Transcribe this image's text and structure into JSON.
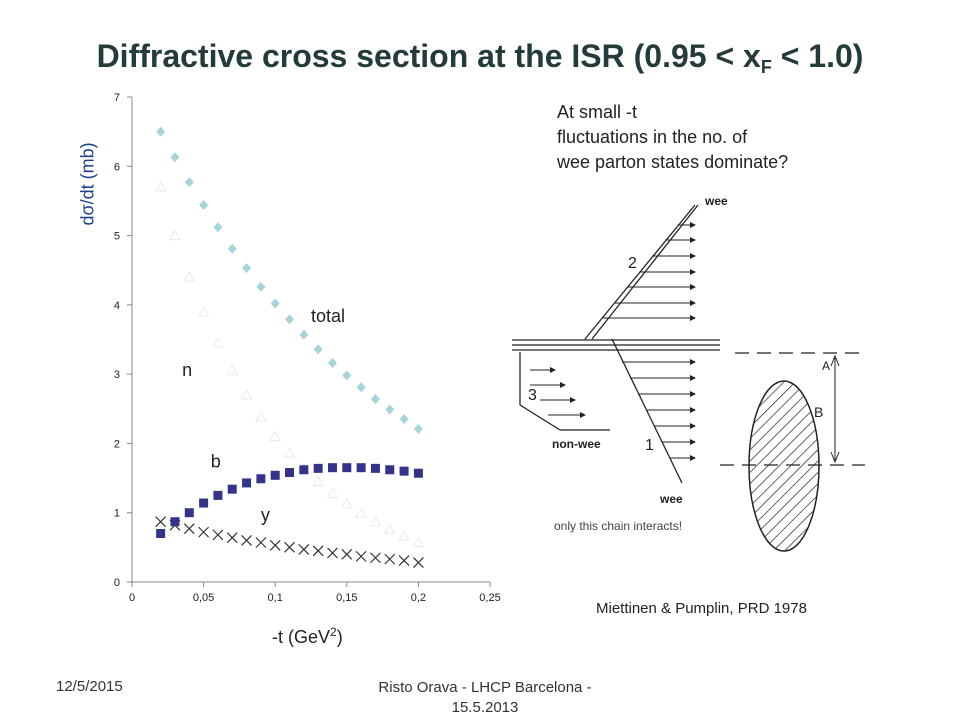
{
  "title": "Diffractive cross section at the ISR (0.95 < x",
  "title_sub": "F",
  "title_end": " < 1.0)",
  "ylabel": "dσ/dt (mb)",
  "xlabel_main": "-t (GeV",
  "xlabel_sup": "2",
  "xlabel_end": ")",
  "note_lines": [
    "At small  -t",
    "fluctuations in the no. of",
    "wee parton states dominate?"
  ],
  "citation": "Miettinen & Pumplin, PRD 1978",
  "diagram": {
    "only_label": "only this chain interacts!",
    "labels": [
      "wee",
      "2",
      "3",
      "non-wee",
      "1",
      "wee",
      "A",
      "B"
    ]
  },
  "footer": {
    "date": "12/5/2015",
    "author_line1": "Risto Orava - LHCP Barcelona -",
    "author_line2": "15.5.2013"
  },
  "chart_data": {
    "type": "scatter",
    "x_ticks": [
      "0",
      "0,05",
      "0,1",
      "0,15",
      "0,2",
      "0,25"
    ],
    "y_ticks": [
      "0",
      "1",
      "2",
      "3",
      "4",
      "5",
      "6",
      "7"
    ],
    "xlim": [
      0,
      0.25
    ],
    "ylim": [
      0,
      7
    ],
    "grid": false,
    "curve_labels": [
      "total",
      "n",
      "b",
      "y"
    ],
    "series": [
      {
        "name": "total",
        "marker": "diamond",
        "color": "#a6d4da",
        "x": [
          0.02,
          0.03,
          0.04,
          0.05,
          0.06,
          0.07,
          0.08,
          0.09,
          0.1,
          0.11,
          0.12,
          0.13,
          0.14,
          0.15,
          0.16,
          0.17,
          0.18,
          0.19,
          0.2
        ],
        "y": [
          6.5,
          6.13,
          5.77,
          5.44,
          5.12,
          4.81,
          4.53,
          4.26,
          4.02,
          3.79,
          3.57,
          3.36,
          3.16,
          2.98,
          2.81,
          2.64,
          2.49,
          2.35,
          2.21
        ]
      },
      {
        "name": "n",
        "marker": "triangle",
        "color": "#e6ecec",
        "x": [
          0.02,
          0.03,
          0.04,
          0.05,
          0.06,
          0.07,
          0.08,
          0.09,
          0.1,
          0.11,
          0.12,
          0.13,
          0.14,
          0.15,
          0.16,
          0.17,
          0.18,
          0.19,
          0.2
        ],
        "y": [
          5.7,
          5.0,
          4.4,
          3.9,
          3.45,
          3.05,
          2.7,
          2.38,
          2.1,
          1.86,
          1.64,
          1.45,
          1.28,
          1.13,
          0.99,
          0.87,
          0.76,
          0.66,
          0.57
        ]
      },
      {
        "name": "b",
        "marker": "square",
        "color": "#33338a",
        "x": [
          0.02,
          0.03,
          0.04,
          0.05,
          0.06,
          0.07,
          0.08,
          0.09,
          0.1,
          0.11,
          0.12,
          0.13,
          0.14,
          0.15,
          0.16,
          0.17,
          0.18,
          0.19,
          0.2
        ],
        "y": [
          0.7,
          0.87,
          1.0,
          1.14,
          1.25,
          1.34,
          1.43,
          1.49,
          1.54,
          1.58,
          1.62,
          1.64,
          1.65,
          1.65,
          1.65,
          1.64,
          1.62,
          1.6,
          1.57
        ]
      },
      {
        "name": "y",
        "marker": "cross",
        "color": "#333333",
        "x": [
          0.02,
          0.03,
          0.04,
          0.05,
          0.06,
          0.07,
          0.08,
          0.09,
          0.1,
          0.11,
          0.12,
          0.13,
          0.14,
          0.15,
          0.16,
          0.17,
          0.18,
          0.19,
          0.2
        ],
        "y": [
          0.87,
          0.82,
          0.77,
          0.72,
          0.68,
          0.64,
          0.6,
          0.57,
          0.53,
          0.5,
          0.47,
          0.45,
          0.42,
          0.4,
          0.37,
          0.35,
          0.33,
          0.31,
          0.28
        ]
      }
    ]
  }
}
